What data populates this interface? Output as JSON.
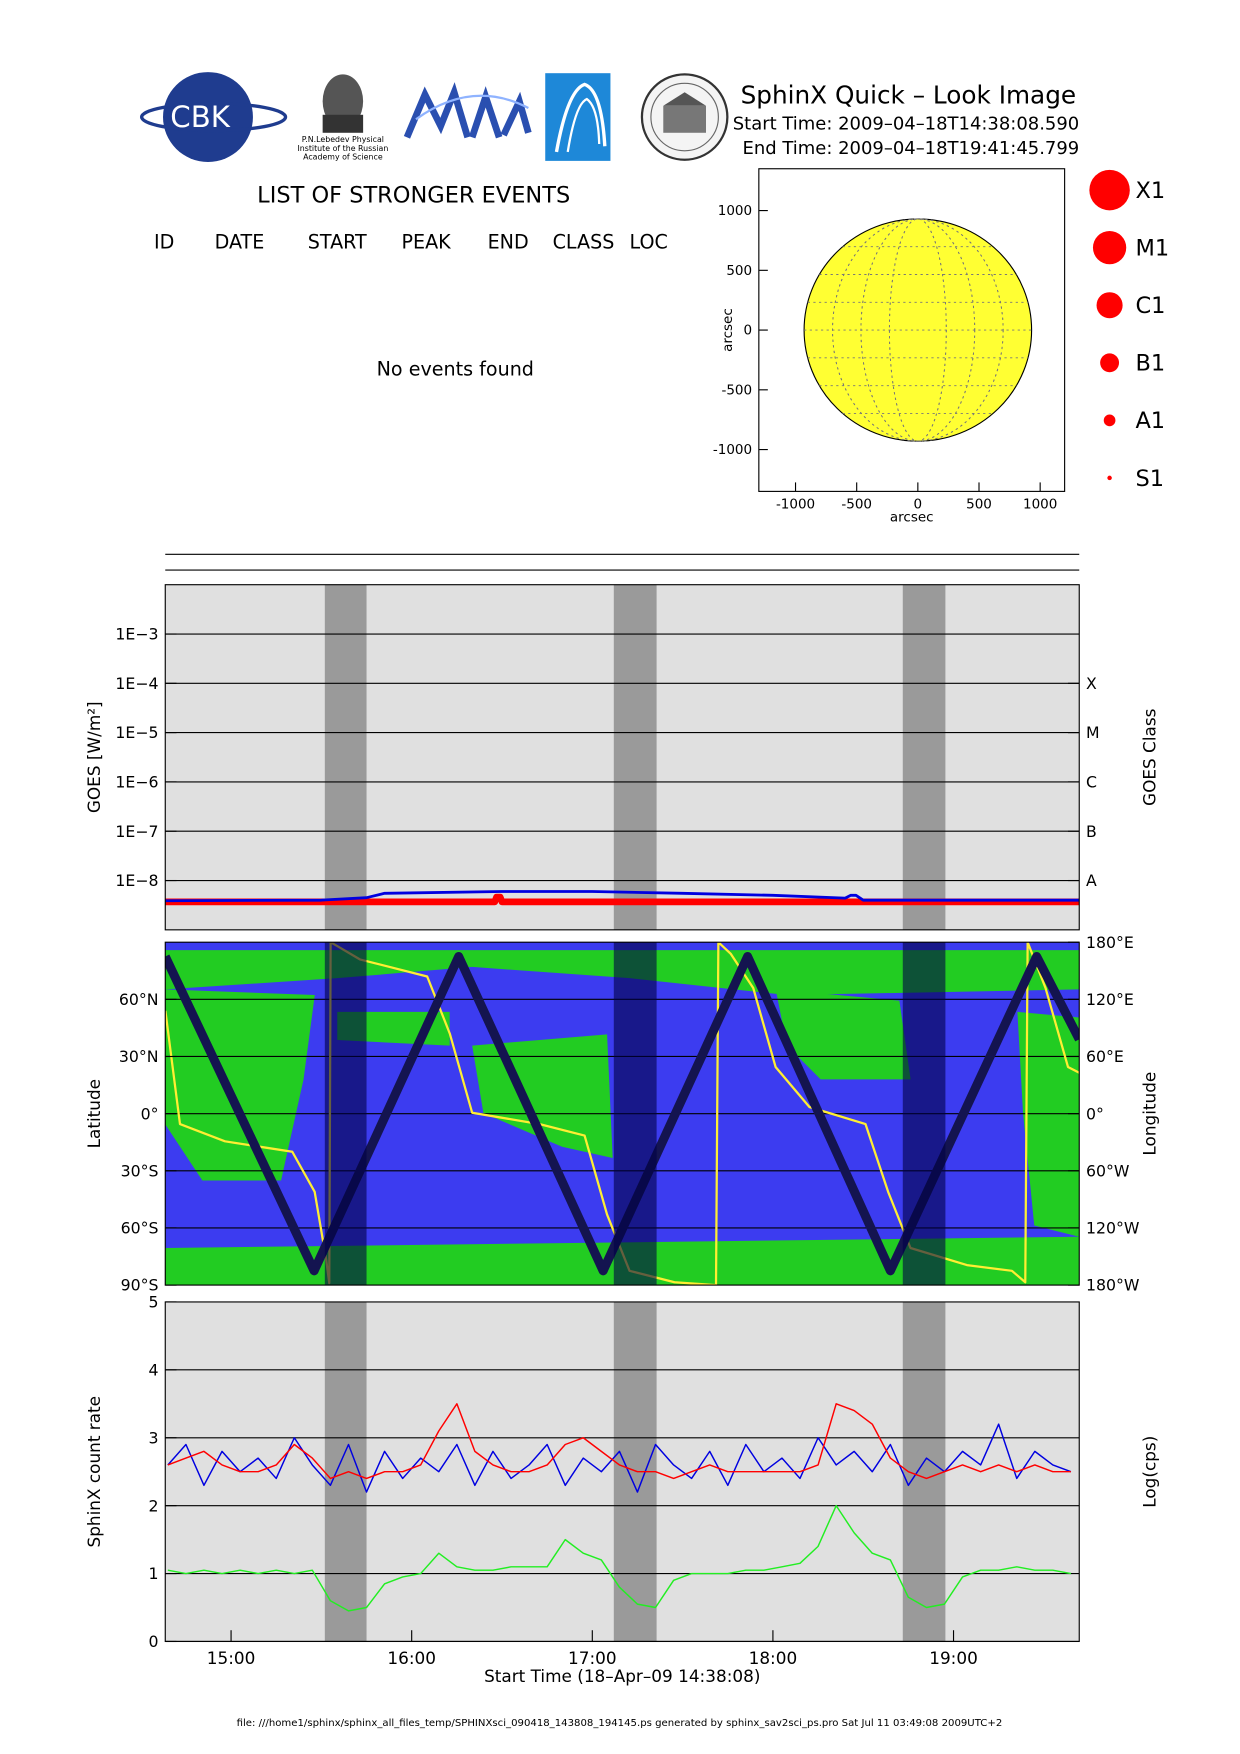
{
  "header": {
    "title": "SphinX Quick – Look Image",
    "start_time": "Start Time: 2009–04–18T14:38:08.590",
    "end_time": "End Time: 2009–04–18T19:41:45.799"
  },
  "logos": {
    "cbk": "CBK",
    "lebedev": [
      "P.N.Lebedev Physical",
      "Institute of the Russian",
      "Academy of Science"
    ]
  },
  "events": {
    "title": "LIST OF STRONGER EVENTS",
    "columns": [
      "ID",
      "DATE",
      "START",
      "PEAK",
      "END",
      "CLASS",
      "LOC"
    ],
    "message": "No events found"
  },
  "footer": "file: ///home1/sphinx/sphinx_all_files_temp/SPHINXsci_090418_143808_194145.ps generated by sphinx_sav2sci_ps.pro Sat Jul 11 03:49:08 2009UTC+2",
  "chart_data": [
    {
      "type": "line",
      "log": true,
      "grid": true,
      "background": "#e0e0e0",
      "shade_color": "#9a9a9a",
      "ylabel": "GOES [W/m²]",
      "y2label": "GOES Class",
      "xlim": [
        14.6356,
        19.696
      ],
      "ylim": [
        1e-09,
        0.01
      ],
      "yticks": [
        {
          "value": 0.001,
          "label": "1E−3"
        },
        {
          "value": 0.0001,
          "label": "1E−4"
        },
        {
          "value": 1e-05,
          "label": "1E−5"
        },
        {
          "value": 1e-06,
          "label": "1E−6"
        },
        {
          "value": 1e-07,
          "label": "1E−7"
        },
        {
          "value": 1e-08,
          "label": "1E−8"
        }
      ],
      "y2lim": [
        1e-09,
        0.01
      ],
      "y2ticks": [
        {
          "value": 0.0001,
          "label": "X"
        },
        {
          "value": 1e-05,
          "label": "M"
        },
        {
          "value": 1e-06,
          "label": "C"
        },
        {
          "value": 1e-07,
          "label": "B"
        },
        {
          "value": 1e-08,
          "label": "A"
        }
      ],
      "shaded": [
        [
          15.519,
          15.75
        ],
        [
          17.119,
          17.356
        ],
        [
          18.719,
          18.955
        ]
      ],
      "series": [
        {
          "color": "#ff0000",
          "x": [
            14.6356,
            15.5,
            16.46,
            16.47,
            16.49,
            16.5,
            17.5,
            18.5,
            19.696
          ],
          "values": [
            3.7e-09,
            3.7e-09,
            3.7e-09,
            4.6e-09,
            4.6e-09,
            3.7e-09,
            3.7e-09,
            3.7e-09,
            3.7e-09
          ]
        },
        {
          "color": "#0000e0",
          "x": [
            14.6356,
            15.5,
            15.75,
            15.85,
            16.5,
            17.0,
            17.5,
            18.0,
            18.4,
            18.43,
            18.46,
            18.5,
            19.696
          ],
          "values": [
            3.9e-09,
            4e-09,
            4.5e-09,
            5.5e-09,
            6e-09,
            6e-09,
            5.5e-09,
            5e-09,
            4.4e-09,
            5e-09,
            5e-09,
            4e-09,
            4e-09
          ]
        }
      ]
    },
    {
      "type": "line",
      "grid": true,
      "background": "#3c3cf0",
      "shade_color": "rgba(0,0,70,0.6)",
      "ylabel": "Latitude",
      "y2label": "Longitude",
      "xlim": [
        14.6356,
        19.696
      ],
      "ylim": [
        -90,
        90
      ],
      "yticks": [
        {
          "value": -90,
          "label": "90°S"
        },
        {
          "value": -60,
          "label": "60°S"
        },
        {
          "value": -30,
          "label": "30°S"
        },
        {
          "value": 0,
          "label": "0°"
        },
        {
          "value": 30,
          "label": "30°N"
        },
        {
          "value": 60,
          "label": "60°N"
        }
      ],
      "y2lim": [
        -180,
        180
      ],
      "y2ticks": [
        {
          "value": 180,
          "label": "180°E"
        },
        {
          "value": 120,
          "label": "120°E"
        },
        {
          "value": 60,
          "label": "60°E"
        },
        {
          "value": 0,
          "label": "0°"
        },
        {
          "value": -60,
          "label": "60°W"
        },
        {
          "value": -120,
          "label": "120°W"
        },
        {
          "value": -180,
          "label": "180°W"
        }
      ],
      "shaded": [
        [
          15.519,
          15.75
        ],
        [
          17.119,
          17.356
        ],
        [
          18.719,
          18.955
        ]
      ],
      "series": [
        {
          "color": "#ffee33",
          "axis": "y2",
          "x": [
            14.636,
            14.717,
            14.966,
            15.339,
            15.463,
            15.526,
            15.544,
            15.551,
            15.713,
            16.086,
            16.211,
            16.335,
            16.708,
            16.957,
            17.082,
            17.206,
            17.455,
            17.685,
            17.698,
            17.766,
            17.891,
            18.015,
            18.202,
            18.513,
            18.638,
            18.762,
            19.074,
            19.323,
            19.397,
            19.41,
            19.509,
            19.634,
            19.696
          ],
          "values": [
            108,
            -11,
            -29,
            -40,
            -82,
            -153,
            -178,
            180,
            162,
            144,
            84,
            1,
            -11,
            -23,
            -106,
            -165,
            -177,
            -180,
            180,
            168,
            132,
            49,
            7,
            -11,
            -82,
            -141,
            -159,
            -165,
            -177,
            180,
            132,
            49,
            43
          ]
        },
        {
          "color": "#141450",
          "x": [
            14.6356,
            15.46,
            16.26,
            17.06,
            17.86,
            18.65,
            19.46,
            19.696
          ],
          "values": [
            82.5,
            -82.5,
            82.5,
            -82.5,
            82.5,
            -82.5,
            82.5,
            39
          ]
        }
      ]
    },
    {
      "type": "line",
      "grid": true,
      "background": "#e0e0e0",
      "shade_color": "#9a9a9a",
      "ylabel": "SphinX count rate",
      "y2label": "Log(cps)",
      "xlabel": "Start Time (18–Apr–09 14:38:08)",
      "xlim": [
        14.6356,
        19.696
      ],
      "ylim": [
        0,
        5
      ],
      "yticks": [
        0,
        1,
        2,
        3,
        4,
        5
      ],
      "xticks": [
        {
          "value": 15,
          "label": "15:00"
        },
        {
          "value": 16,
          "label": "16:00"
        },
        {
          "value": 17,
          "label": "17:00"
        },
        {
          "value": 18,
          "label": "18:00"
        },
        {
          "value": 19,
          "label": "19:00"
        }
      ],
      "shaded": [
        [
          15.519,
          15.75
        ],
        [
          17.119,
          17.356
        ],
        [
          18.719,
          18.955
        ]
      ],
      "series": [
        {
          "color": "#0000e0",
          "x": [
            14.65,
            14.75,
            14.85,
            14.95,
            15.05,
            15.15,
            15.25,
            15.35,
            15.45,
            15.55,
            15.65,
            15.75,
            15.85,
            15.95,
            16.05,
            16.15,
            16.25,
            16.35,
            16.45,
            16.55,
            16.65,
            16.75,
            16.85,
            16.95,
            17.05,
            17.15,
            17.25,
            17.35,
            17.45,
            17.55,
            17.65,
            17.75,
            17.85,
            17.95,
            18.05,
            18.15,
            18.25,
            18.35,
            18.45,
            18.55,
            18.65,
            18.75,
            18.85,
            18.95,
            19.05,
            19.15,
            19.25,
            19.35,
            19.45,
            19.55,
            19.65
          ],
          "values": [
            2.6,
            2.9,
            2.3,
            2.8,
            2.5,
            2.7,
            2.4,
            3.0,
            2.6,
            2.3,
            2.9,
            2.2,
            2.8,
            2.4,
            2.7,
            2.5,
            2.9,
            2.3,
            2.8,
            2.4,
            2.6,
            2.9,
            2.3,
            2.7,
            2.5,
            2.8,
            2.2,
            2.9,
            2.6,
            2.4,
            2.8,
            2.3,
            2.9,
            2.5,
            2.7,
            2.4,
            3.0,
            2.6,
            2.8,
            2.5,
            2.9,
            2.3,
            2.7,
            2.5,
            2.8,
            2.6,
            3.2,
            2.4,
            2.8,
            2.6,
            2.5
          ]
        },
        {
          "color": "#ff0000",
          "x": [
            14.65,
            14.75,
            14.85,
            14.95,
            15.05,
            15.15,
            15.25,
            15.35,
            15.45,
            15.55,
            15.65,
            15.75,
            15.85,
            15.95,
            16.05,
            16.15,
            16.25,
            16.35,
            16.45,
            16.55,
            16.65,
            16.75,
            16.85,
            16.95,
            17.05,
            17.15,
            17.25,
            17.35,
            17.45,
            17.55,
            17.65,
            17.75,
            17.85,
            17.95,
            18.05,
            18.15,
            18.25,
            18.35,
            18.45,
            18.55,
            18.65,
            18.75,
            18.85,
            18.95,
            19.05,
            19.15,
            19.25,
            19.35,
            19.45,
            19.55,
            19.65
          ],
          "values": [
            2.6,
            2.7,
            2.8,
            2.6,
            2.5,
            2.5,
            2.6,
            2.9,
            2.7,
            2.4,
            2.5,
            2.4,
            2.5,
            2.5,
            2.6,
            3.1,
            3.5,
            2.8,
            2.6,
            2.5,
            2.5,
            2.6,
            2.9,
            3.0,
            2.8,
            2.6,
            2.5,
            2.5,
            2.4,
            2.5,
            2.6,
            2.5,
            2.5,
            2.5,
            2.5,
            2.5,
            2.6,
            3.5,
            3.4,
            3.2,
            2.7,
            2.5,
            2.4,
            2.5,
            2.6,
            2.5,
            2.6,
            2.5,
            2.6,
            2.5,
            2.5
          ]
        },
        {
          "color": "#22ee22",
          "x": [
            14.65,
            14.75,
            14.85,
            14.95,
            15.05,
            15.15,
            15.25,
            15.35,
            15.45,
            15.55,
            15.65,
            15.75,
            15.85,
            15.95,
            16.05,
            16.15,
            16.25,
            16.35,
            16.45,
            16.55,
            16.65,
            16.75,
            16.85,
            16.95,
            17.05,
            17.15,
            17.25,
            17.35,
            17.45,
            17.55,
            17.65,
            17.75,
            17.85,
            17.95,
            18.05,
            18.15,
            18.25,
            18.35,
            18.45,
            18.55,
            18.65,
            18.75,
            18.85,
            18.95,
            19.05,
            19.15,
            19.25,
            19.35,
            19.45,
            19.55,
            19.65
          ],
          "values": [
            1.05,
            1.0,
            1.05,
            1.0,
            1.05,
            1.0,
            1.05,
            1.0,
            1.05,
            0.6,
            0.45,
            0.5,
            0.85,
            0.95,
            1.0,
            1.3,
            1.1,
            1.05,
            1.05,
            1.1,
            1.1,
            1.1,
            1.5,
            1.3,
            1.2,
            0.8,
            0.55,
            0.5,
            0.9,
            1.0,
            1.0,
            1.0,
            1.05,
            1.05,
            1.1,
            1.15,
            1.4,
            2.0,
            1.6,
            1.3,
            1.2,
            0.65,
            0.5,
            0.55,
            0.95,
            1.05,
            1.05,
            1.1,
            1.05,
            1.05,
            1.0
          ]
        }
      ]
    },
    {
      "type": "disk",
      "xlabel": "arcsec",
      "ylabel": "arcsec",
      "color": "#ffff33",
      "xlim": [
        -1300,
        1200
      ],
      "ylim": [
        -1350,
        1350
      ],
      "xticks": [
        -1000,
        -500,
        0,
        500,
        1000
      ],
      "yticks": [
        -1000,
        -500,
        0,
        500,
        1000
      ],
      "sun_radius": 930,
      "classes": [
        "X1",
        "M1",
        "C1",
        "B1",
        "A1",
        "S1"
      ],
      "class_color": "#ff0000"
    }
  ]
}
